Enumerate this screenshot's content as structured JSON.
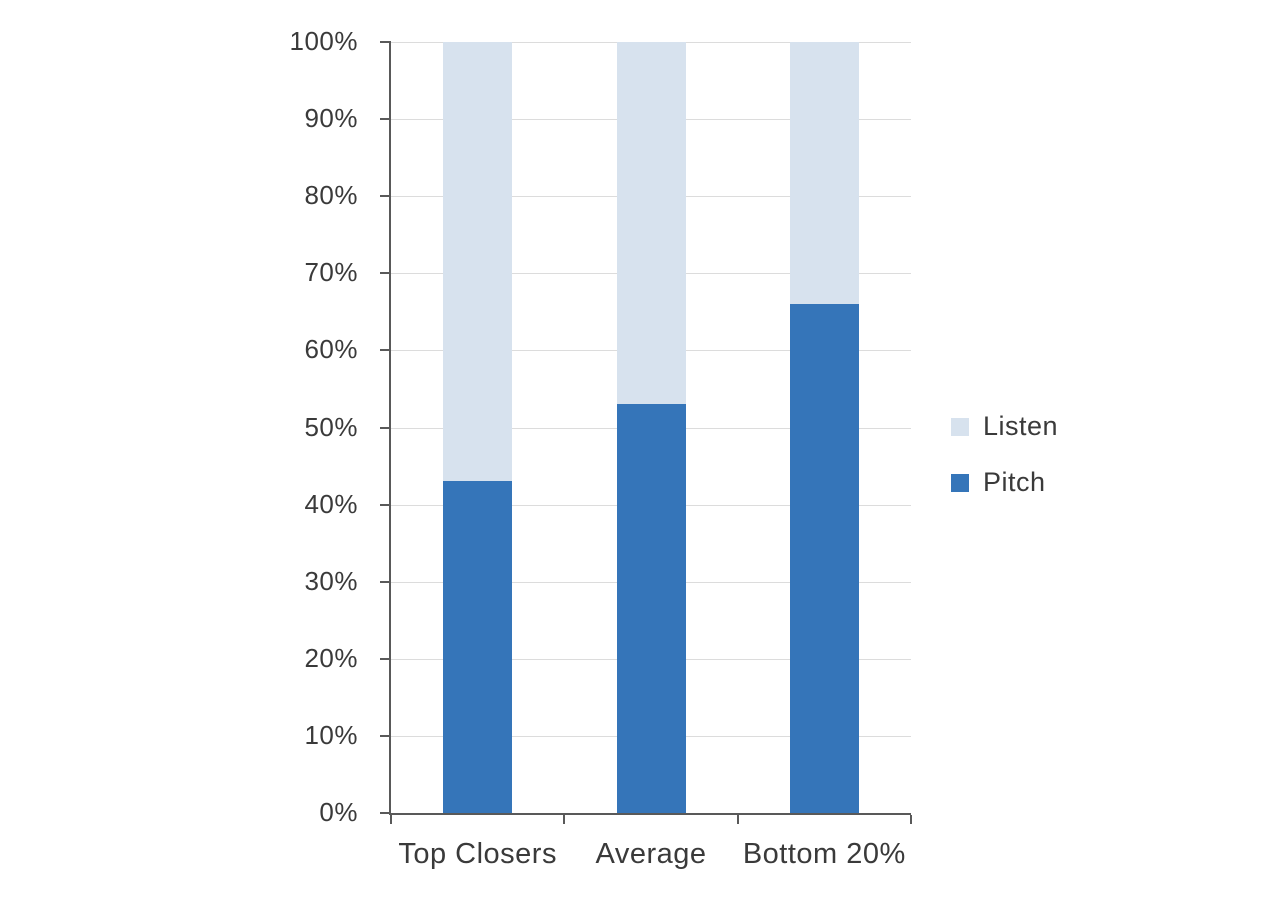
{
  "colors": {
    "pitch": "#3575b9",
    "listen": "#d7e2ee",
    "text": "#3a3a3a",
    "axis": "#595959",
    "gridline": "#dcdcdc",
    "background": "#ffffff"
  },
  "chart_data": {
    "type": "bar",
    "stacked": true,
    "percent_stacked": true,
    "title": "",
    "xlabel": "",
    "ylabel": "",
    "categories": [
      "Top Closers",
      "Average",
      "Bottom 20%"
    ],
    "series": [
      {
        "name": "Pitch",
        "color_key": "pitch",
        "values": [
          43,
          53,
          66
        ]
      },
      {
        "name": "Listen",
        "color_key": "listen",
        "values": [
          57,
          47,
          34
        ]
      }
    ],
    "totals": [
      100,
      100,
      100
    ],
    "ylim": [
      0,
      100
    ],
    "ytick_step": 10,
    "ytick_labels": [
      "0%",
      "10%",
      "20%",
      "30%",
      "40%",
      "50%",
      "60%",
      "70%",
      "80%",
      "90%",
      "100%"
    ],
    "grid": true,
    "legend_position": "right",
    "legend": [
      {
        "label": "Listen",
        "color_key": "listen"
      },
      {
        "label": "Pitch",
        "color_key": "pitch"
      }
    ]
  }
}
